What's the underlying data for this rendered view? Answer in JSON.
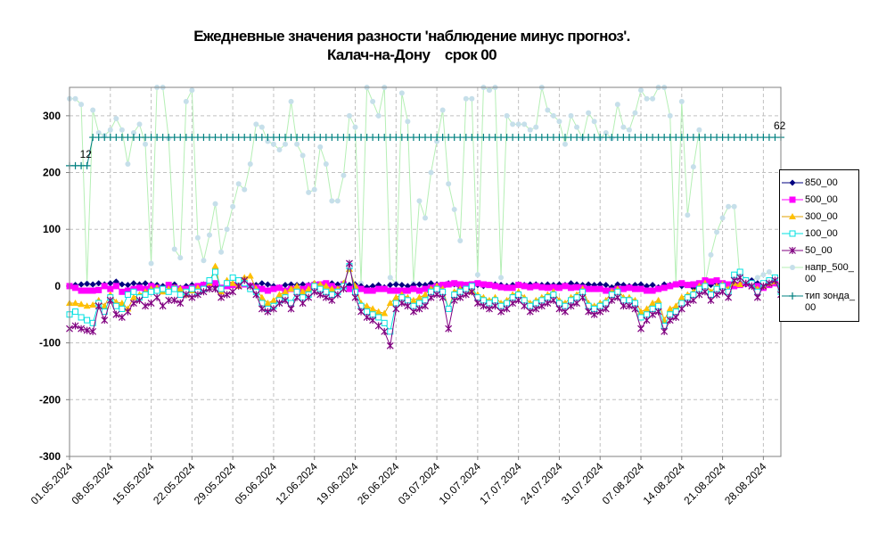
{
  "chart_data": {
    "type": "line",
    "title": "Ежедневные значения разности 'наблюдение минус прогноз'.",
    "subtitle": "Калач-на-Дону    срок 00",
    "categories": [
      "01.05.2024",
      null,
      null,
      null,
      null,
      null,
      null,
      "08.05.2024",
      null,
      null,
      null,
      null,
      null,
      null,
      "15.05.2024",
      null,
      null,
      null,
      null,
      null,
      null,
      "22.05.2024",
      null,
      null,
      null,
      null,
      null,
      null,
      "29.05.2024",
      null,
      null,
      null,
      null,
      null,
      null,
      "05.06.2024",
      null,
      null,
      null,
      null,
      null,
      null,
      "12.06.2024",
      null,
      null,
      null,
      null,
      null,
      null,
      "19.06.2024",
      null,
      null,
      null,
      null,
      null,
      null,
      "26.06.2024",
      null,
      null,
      null,
      null,
      null,
      null,
      "03.07.2024",
      null,
      null,
      null,
      null,
      null,
      null,
      "10.07.2024",
      null,
      null,
      null,
      null,
      null,
      null,
      "17.07.2024",
      null,
      null,
      null,
      null,
      null,
      null,
      "24.07.2024",
      null,
      null,
      null,
      null,
      null,
      null,
      "31.07.2024",
      null,
      null,
      null,
      null,
      null,
      null,
      "07.08.2024",
      null,
      null,
      null,
      null,
      null,
      null,
      "14.08.2024",
      null,
      null,
      null,
      null,
      null,
      null,
      "21.08.2024",
      null,
      null,
      null,
      null,
      null,
      null,
      "28.08.2024",
      null,
      null,
      null
    ],
    "ylim": [
      -300,
      350
    ],
    "yticks": [
      -300,
      -200,
      -100,
      0,
      100,
      200,
      300
    ],
    "grid": true,
    "legend": "right",
    "series": [
      {
        "name": "850_00",
        "color": "#000080",
        "line_color": "#000080",
        "marker": "diamond",
        "values": [
          0,
          2,
          3,
          4,
          3,
          5,
          3,
          5,
          8,
          3,
          2,
          5,
          3,
          5,
          3,
          2,
          0,
          2,
          3,
          -3,
          0,
          2,
          -2,
          3,
          5,
          2,
          -3,
          5,
          3,
          2,
          3,
          0,
          2,
          5,
          3,
          0,
          -2,
          2,
          3,
          2,
          3,
          2,
          5,
          2,
          3,
          5,
          3,
          5,
          2,
          3,
          0,
          -2,
          0,
          2,
          -2,
          2,
          3,
          2,
          0,
          2,
          3,
          2,
          5,
          3,
          2,
          5,
          3,
          -5,
          2,
          3,
          2,
          0,
          2,
          3,
          2,
          0,
          2,
          3,
          2,
          3,
          3,
          2,
          3,
          2,
          3,
          2,
          5,
          3,
          2,
          3,
          2,
          3,
          2,
          -2,
          3,
          2,
          0,
          2,
          3,
          0,
          2,
          -2,
          3,
          2,
          3,
          0,
          2,
          -3,
          5,
          3,
          2,
          5,
          3,
          0,
          2,
          5,
          3,
          10,
          5,
          3,
          2,
          5,
          3
        ]
      },
      {
        "name": "500_00",
        "color": "#ff00ff",
        "line_color": "#ff00ff",
        "marker": "square",
        "values": [
          0,
          -3,
          -8,
          -8,
          -8,
          -7,
          0,
          -5,
          0,
          -10,
          -8,
          -5,
          -3,
          -5,
          0,
          -3,
          -5,
          2,
          -3,
          -5,
          -5,
          -3,
          0,
          2,
          3,
          5,
          -3,
          0,
          2,
          5,
          3,
          0,
          -3,
          -5,
          -8,
          -5,
          -3,
          -8,
          -5,
          -10,
          -5,
          0,
          2,
          3,
          5,
          0,
          -5,
          3,
          -5,
          -3,
          -5,
          -8,
          -8,
          -5,
          -5,
          -8,
          -8,
          -8,
          -8,
          -5,
          -8,
          -5,
          -3,
          0,
          2,
          3,
          5,
          3,
          2,
          3,
          5,
          3,
          2,
          0,
          -2,
          -3,
          -3,
          2,
          0,
          -2,
          0,
          -2,
          -3,
          -2,
          -3,
          0,
          -3,
          -2,
          -3,
          -5,
          -5,
          -5,
          -8,
          -8,
          -5,
          -5,
          -3,
          -5,
          -5,
          -8,
          -8,
          -5,
          -3,
          0,
          3,
          5,
          2,
          3,
          5,
          10,
          8,
          10,
          5,
          3,
          0,
          2,
          5,
          3,
          0,
          -3,
          2,
          5,
          0
        ]
      },
      {
        "name": "300_00",
        "color": "#ffc000",
        "line_color": "#e0a000",
        "marker": "triangle",
        "values": [
          -30,
          -30,
          -32,
          -35,
          -33,
          -25,
          -35,
          -15,
          -28,
          -30,
          -40,
          -20,
          -15,
          -10,
          -5,
          -3,
          -10,
          -5,
          -3,
          -5,
          -15,
          -8,
          -3,
          -5,
          5,
          35,
          -10,
          10,
          5,
          0,
          15,
          18,
          -5,
          -20,
          -30,
          -25,
          -15,
          -10,
          -5,
          0,
          -10,
          -5,
          5,
          3,
          0,
          -5,
          -5,
          5,
          30,
          0,
          -30,
          -35,
          -40,
          -45,
          -48,
          -30,
          -20,
          -15,
          -20,
          -25,
          -20,
          -15,
          -5,
          0,
          -5,
          -40,
          -10,
          -5,
          -5,
          -10,
          -15,
          -20,
          -25,
          -20,
          -30,
          -25,
          -15,
          -10,
          -20,
          -30,
          -25,
          -20,
          -15,
          -10,
          -25,
          -30,
          -20,
          -15,
          -5,
          -30,
          -35,
          -30,
          -25,
          -10,
          -5,
          -20,
          -20,
          -25,
          -45,
          -40,
          -30,
          -25,
          -60,
          -40,
          -35,
          -20,
          -15,
          -10,
          0,
          5,
          -10,
          0,
          3,
          -5,
          5,
          3,
          10,
          5,
          -5,
          0,
          5,
          8,
          -5
        ]
      },
      {
        "name": "100_00",
        "color": "#00e0e0",
        "line_color": "#00e0e0",
        "marker": "square-open",
        "values": [
          -50,
          -45,
          -55,
          -60,
          -65,
          -30,
          -45,
          -20,
          -35,
          -40,
          -15,
          -10,
          -20,
          -15,
          -10,
          -8,
          -5,
          -10,
          -5,
          -15,
          -10,
          -5,
          -10,
          -5,
          10,
          25,
          -5,
          5,
          15,
          10,
          5,
          -5,
          -10,
          -30,
          -40,
          -35,
          -25,
          -20,
          -30,
          -10,
          -20,
          -15,
          0,
          -5,
          -10,
          -15,
          -10,
          0,
          35,
          -10,
          -35,
          -45,
          -50,
          -55,
          -65,
          -80,
          -30,
          -20,
          -25,
          -35,
          -30,
          -25,
          -10,
          -5,
          -10,
          -40,
          -15,
          -10,
          -5,
          0,
          -20,
          -25,
          -30,
          -25,
          -35,
          -30,
          -20,
          -15,
          -25,
          -35,
          -30,
          -25,
          -20,
          -15,
          -30,
          -35,
          -25,
          -20,
          -10,
          -35,
          -40,
          -35,
          -30,
          -15,
          -10,
          -25,
          -25,
          -30,
          -55,
          -50,
          -40,
          -35,
          -70,
          -50,
          -45,
          -30,
          -20,
          -15,
          -5,
          0,
          -15,
          -5,
          0,
          -10,
          20,
          25,
          10,
          5,
          -10,
          5,
          10,
          15,
          -10
        ]
      },
      {
        "name": "50_00",
        "color": "#800080",
        "line_color": "#800080",
        "marker": "x",
        "values": [
          -75,
          -70,
          -75,
          -78,
          -80,
          -35,
          -60,
          -25,
          -50,
          -55,
          -45,
          -30,
          -25,
          -35,
          -30,
          -20,
          -35,
          -25,
          -25,
          -30,
          -15,
          -20,
          -15,
          -10,
          -5,
          -5,
          -20,
          -15,
          -10,
          0,
          10,
          0,
          -15,
          -40,
          -45,
          -40,
          -30,
          -25,
          -40,
          -20,
          -30,
          -20,
          -10,
          -15,
          -20,
          -25,
          -15,
          -5,
          40,
          -20,
          -45,
          -55,
          -60,
          -70,
          -80,
          -105,
          -40,
          -30,
          -35,
          -45,
          -40,
          -35,
          -20,
          -15,
          -20,
          -75,
          -25,
          -20,
          -15,
          -10,
          -30,
          -35,
          -40,
          -35,
          -45,
          -40,
          -30,
          -25,
          -35,
          -45,
          -40,
          -35,
          -30,
          -25,
          -40,
          -45,
          -35,
          -30,
          -20,
          -45,
          -50,
          -45,
          -40,
          -25,
          -20,
          -35,
          -35,
          -40,
          -75,
          -60,
          -50,
          -45,
          -80,
          -60,
          -55,
          -40,
          -30,
          -25,
          -15,
          -10,
          -25,
          -15,
          -10,
          -20,
          10,
          15,
          5,
          0,
          -20,
          0,
          5,
          10,
          -15
        ]
      },
      {
        "name": "напр_500_00",
        "color": "#c6dfea",
        "line_color": "#b5efb5",
        "marker": "circle",
        "values": [
          330,
          330,
          320,
          5,
          310,
          270,
          265,
          275,
          295,
          275,
          215,
          270,
          285,
          250,
          40,
          350,
          350,
          260,
          65,
          50,
          325,
          345,
          85,
          45,
          90,
          145,
          60,
          100,
          140,
          180,
          170,
          215,
          285,
          280,
          255,
          250,
          240,
          250,
          325,
          250,
          230,
          165,
          170,
          245,
          215,
          150,
          150,
          195,
          300,
          280,
          5,
          350,
          325,
          300,
          350,
          15,
          5,
          340,
          290,
          5,
          150,
          120,
          200,
          255,
          310,
          180,
          135,
          80,
          330,
          330,
          20,
          350,
          345,
          350,
          15,
          300,
          285,
          285,
          285,
          275,
          280,
          350,
          310,
          300,
          290,
          250,
          300,
          280,
          260,
          305,
          290,
          260,
          270,
          260,
          320,
          280,
          275,
          305,
          345,
          330,
          330,
          350,
          350,
          300,
          5,
          325,
          125,
          210,
          275,
          5,
          55,
          95,
          120,
          140,
          140,
          10,
          5,
          10,
          15,
          20,
          25,
          10,
          5
        ]
      },
      {
        "name": "тип зонда_00",
        "color": "#008080",
        "line_color": "#008080",
        "marker": "plus",
        "values": [
          212,
          212,
          212,
          212,
          262,
          262,
          262,
          262,
          262,
          262,
          262,
          262,
          262,
          262,
          262,
          262,
          262,
          262,
          262,
          262,
          262,
          262,
          262,
          262,
          262,
          262,
          262,
          262,
          262,
          262,
          262,
          262,
          262,
          262,
          262,
          262,
          262,
          262,
          262,
          262,
          262,
          262,
          262,
          262,
          262,
          262,
          262,
          262,
          262,
          262,
          262,
          262,
          262,
          262,
          262,
          262,
          262,
          262,
          262,
          262,
          262,
          262,
          262,
          262,
          262,
          262,
          262,
          262,
          262,
          262,
          262,
          262,
          262,
          262,
          262,
          262,
          262,
          262,
          262,
          262,
          262,
          262,
          262,
          262,
          262,
          262,
          262,
          262,
          262,
          262,
          262,
          262,
          262,
          262,
          262,
          262,
          262,
          262,
          262,
          262,
          262,
          262,
          262,
          262,
          262,
          262,
          262,
          262,
          262,
          262,
          262,
          262,
          262,
          262,
          262,
          262,
          262,
          262,
          262,
          262,
          262,
          262,
          262
        ]
      }
    ],
    "annotations": [
      {
        "text": "12",
        "x": 3,
        "y": 212
      },
      {
        "text": "62",
        "x": 122,
        "y": 262
      }
    ]
  }
}
